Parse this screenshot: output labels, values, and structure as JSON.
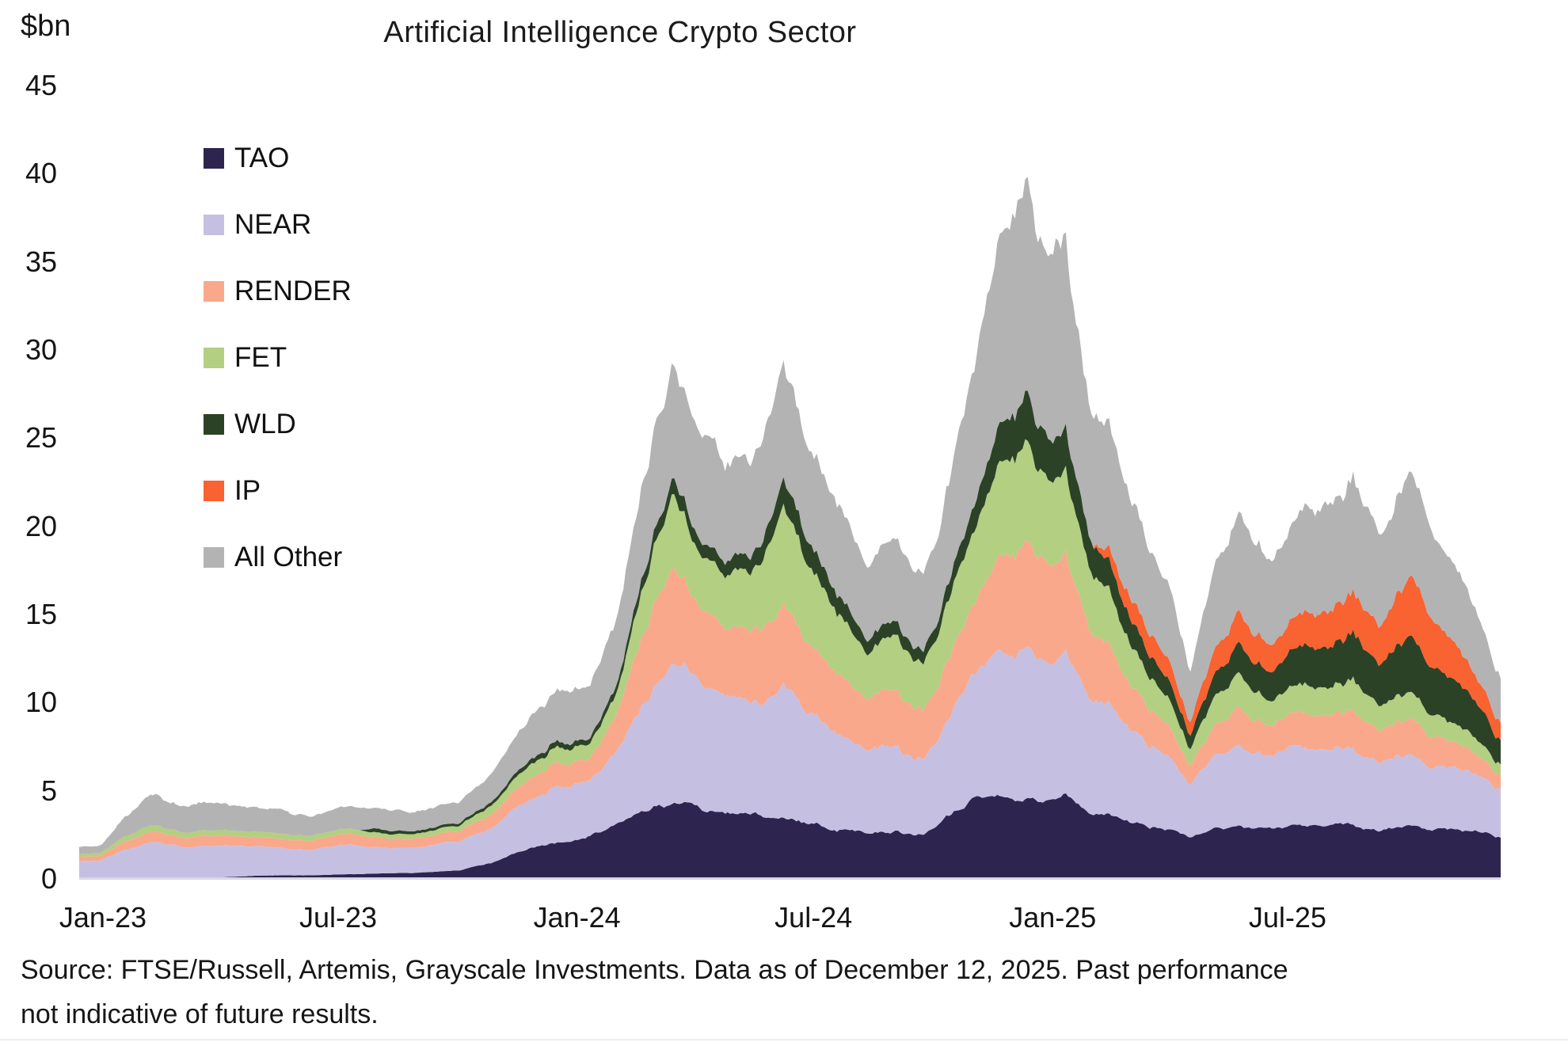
{
  "header": {
    "units_label": "$bn",
    "title": "Artificial Intelligence Crypto Sector"
  },
  "legend": {
    "position": "top-left",
    "items": [
      {
        "label": "TAO",
        "color": "#2e2450"
      },
      {
        "label": "NEAR",
        "color": "#c5c0e2"
      },
      {
        "label": "RENDER",
        "color": "#f9a88c"
      },
      {
        "label": "FET",
        "color": "#b3cf82"
      },
      {
        "label": "WLD",
        "color": "#2c4226"
      },
      {
        "label": "IP",
        "color": "#f96231"
      },
      {
        "label": "All Other",
        "color": "#b3b3b3"
      }
    ]
  },
  "axes": {
    "y_ticks": [
      "45",
      "40",
      "35",
      "30",
      "25",
      "20",
      "15",
      "10",
      "5",
      "0"
    ],
    "x_ticks": [
      {
        "label": "Jan-23",
        "t": 0
      },
      {
        "label": "Jul-23",
        "t": 5.95
      },
      {
        "label": "Jan-24",
        "t": 11.99
      },
      {
        "label": "Jul-24",
        "t": 17.97
      },
      {
        "label": "Jan-25",
        "t": 24.02
      },
      {
        "label": "Jul-25",
        "t": 29.96
      }
    ]
  },
  "footer": {
    "line1": "Source: FTSE/Russell, Artemis, Grayscale Investments. Data as of December 12, 2025. Past performance",
    "line2": "not indicative of future results."
  },
  "chart_data": {
    "type": "area",
    "stacked": true,
    "title": "Artificial Intelligence Crypto Sector",
    "ylabel": "$bn",
    "ylim": [
      0,
      45
    ],
    "grid": false,
    "legend_position": "top-left",
    "x_unit": "months since Jan-2023 (data span early-Dec-2022 through Dec-12-2025)",
    "x_range": [
      -0.6,
      35.35
    ],
    "anchors_t": [
      -0.6,
      0,
      0.5,
      1.2,
      2,
      3,
      4,
      5,
      6,
      6.5,
      6.8,
      8,
      9,
      10,
      11,
      11.5,
      12.3,
      13,
      13.8,
      14.4,
      15,
      15.7,
      16.5,
      17.2,
      18,
      18.7,
      19.3,
      20,
      20.7,
      21.2,
      22,
      22.8,
      23.4,
      23.9,
      24.3,
      25,
      25.5,
      26,
      27,
      27.5,
      28,
      28.7,
      29.6,
      30.2,
      31,
      31.6,
      32.3,
      33.2,
      34,
      34.6,
      35,
      35.35
    ],
    "series": [
      {
        "name": "TAO",
        "color": "#2e2450",
        "jitter": 0.08,
        "values": [
          0,
          0,
          0,
          0,
          0,
          0.1,
          0.2,
          0.2,
          0.25,
          0.27,
          0.3,
          0.35,
          0.5,
          1.0,
          1.8,
          2.1,
          2.4,
          3.0,
          4.0,
          4.5,
          4.1,
          3.7,
          3.6,
          3.4,
          3.0,
          2.9,
          2.7,
          2.6,
          2.5,
          3.0,
          4.4,
          4.8,
          4.8,
          4.6,
          4.7,
          3.9,
          3.6,
          3.2,
          2.8,
          2.3,
          2.8,
          3.1,
          2.7,
          3.0,
          3.0,
          3.2,
          2.8,
          3.0,
          2.8,
          2.7,
          2.5,
          2.3
        ]
      },
      {
        "name": "NEAR",
        "color": "#c5c0e2",
        "jitter": 0.07,
        "values": [
          1.0,
          1.15,
          1.6,
          2.1,
          1.85,
          1.9,
          1.7,
          1.5,
          1.6,
          1.55,
          1.5,
          1.4,
          1.5,
          2.0,
          2.9,
          3.2,
          3.0,
          4.0,
          6.5,
          8.4,
          7.4,
          6.5,
          6.4,
          7.5,
          6.3,
          5.6,
          4.7,
          4.6,
          4.2,
          5.0,
          6.8,
          8.2,
          8.7,
          8.0,
          8.3,
          6.6,
          6.0,
          5.0,
          4.0,
          3.0,
          4.0,
          4.8,
          4.0,
          4.5,
          4.3,
          4.5,
          3.9,
          4.0,
          3.6,
          3.3,
          3.0,
          2.75
        ]
      },
      {
        "name": "RENDER",
        "color": "#f9a88c",
        "jitter": 0.09,
        "values": [
          0.25,
          0.28,
          0.45,
          0.6,
          0.52,
          0.6,
          0.55,
          0.5,
          0.6,
          0.57,
          0.55,
          0.5,
          0.55,
          0.8,
          1.2,
          1.35,
          1.2,
          2.0,
          4.5,
          5.7,
          4.6,
          4.0,
          4.1,
          4.5,
          3.7,
          3.3,
          2.8,
          2.9,
          2.6,
          3.0,
          4.0,
          5.6,
          6.2,
          5.4,
          5.3,
          3.9,
          3.3,
          2.5,
          1.8,
          1.05,
          1.6,
          2.1,
          1.7,
          2.0,
          2.0,
          2.2,
          1.8,
          2.0,
          1.5,
          1.2,
          0.95,
          0.8
        ]
      },
      {
        "name": "FET",
        "color": "#b3cf82",
        "jitter": 0.09,
        "values": [
          0.15,
          0.18,
          0.28,
          0.38,
          0.3,
          0.32,
          0.3,
          0.28,
          0.3,
          0.29,
          0.28,
          0.25,
          0.3,
          0.5,
          0.8,
          0.85,
          0.8,
          1.2,
          3.0,
          4.1,
          3.4,
          3.0,
          3.3,
          5.6,
          4.3,
          3.6,
          2.8,
          2.9,
          2.6,
          3.0,
          4.0,
          5.2,
          5.8,
          5.0,
          4.8,
          3.4,
          2.9,
          2.2,
          1.6,
          0.95,
          1.5,
          1.9,
          1.4,
          1.6,
          1.6,
          1.8,
          1.4,
          1.5,
          1.1,
          0.95,
          0.75,
          0.62
        ]
      },
      {
        "name": "WLD",
        "color": "#2c4226",
        "jitter": 0.11,
        "values": [
          0,
          0,
          0,
          0,
          0,
          0,
          0,
          0,
          0,
          0,
          0.22,
          0.15,
          0.15,
          0.2,
          0.3,
          0.32,
          0.3,
          0.45,
          0.75,
          0.95,
          0.85,
          0.8,
          0.95,
          1.5,
          1.25,
          1.0,
          0.8,
          0.75,
          0.7,
          0.8,
          1.4,
          2.2,
          2.6,
          2.3,
          2.3,
          1.7,
          1.5,
          1.3,
          1.0,
          0.75,
          1.2,
          1.7,
          1.5,
          2.1,
          2.4,
          2.7,
          2.5,
          3.2,
          2.6,
          2.1,
          1.7,
          1.35
        ]
      },
      {
        "name": "IP",
        "color": "#f96231",
        "jitter": 0.13,
        "values": [
          0,
          0,
          0,
          0,
          0,
          0,
          0,
          0,
          0,
          0,
          0,
          0,
          0,
          0,
          0,
          0,
          0,
          0,
          0,
          0,
          0,
          0,
          0,
          0,
          0,
          0,
          0,
          0,
          0,
          0,
          0,
          0,
          0,
          0,
          0,
          0,
          0.7,
          1.2,
          1.1,
          0.8,
          1.3,
          1.8,
          1.5,
          1.9,
          2.1,
          2.3,
          2.2,
          3.7,
          2.4,
          1.6,
          1.2,
          0.95
        ]
      },
      {
        "name": "All Other",
        "color": "#b3b3b3",
        "jitter": 0.12,
        "values": [
          0.4,
          0.45,
          1.0,
          1.75,
          1.5,
          1.6,
          1.4,
          1.2,
          1.25,
          1.18,
          1.1,
          1.05,
          1.2,
          1.7,
          2.6,
          2.9,
          2.7,
          3.8,
          6.0,
          7.2,
          6.4,
          5.6,
          5.6,
          6.5,
          5.3,
          5.1,
          4.4,
          4.6,
          4.2,
          5.0,
          7.6,
          10.5,
          12.7,
          10.7,
          11.0,
          8.0,
          6.8,
          5.6,
          4.5,
          3.0,
          4.6,
          5.9,
          4.7,
          5.7,
          6.0,
          6.6,
          5.1,
          5.7,
          4.6,
          3.9,
          3.2,
          2.5
        ]
      }
    ],
    "noise": {
      "seed": 20231212,
      "decay": 0.86,
      "shared": 0.06,
      "samples": 560
    }
  }
}
